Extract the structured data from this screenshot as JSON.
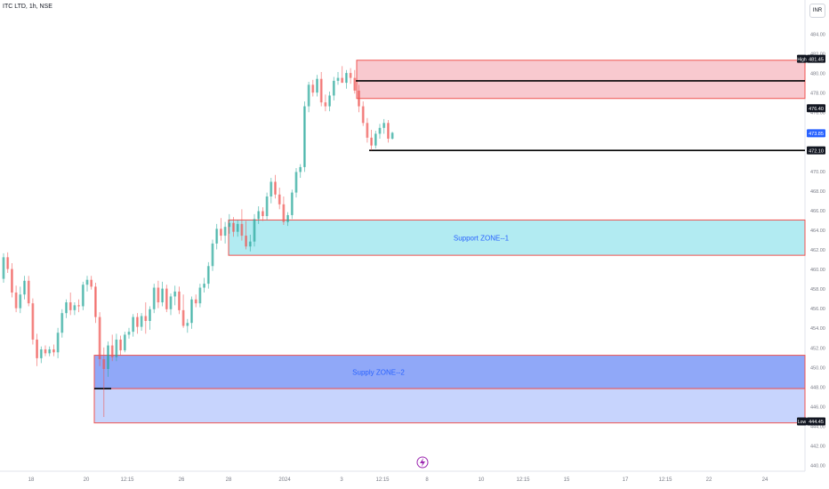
{
  "header": {
    "symbol": "ITC LTD, 1h, NSE",
    "currency": "INR"
  },
  "zones": [
    {
      "label": "Support  ZONE--1",
      "top_price": 465.0,
      "bottom_price": 461.4,
      "start_x": 257,
      "fill": "#b2ebf2",
      "border": "#ef5350",
      "text_color": "#2962ff"
    },
    {
      "label": "Supply  ZONE--2",
      "top_price": 451.2,
      "bottom_price": 447.8,
      "start_x": 106,
      "fill": "#90a8f8",
      "border": "#ef5350",
      "text_color": "#2962ff"
    },
    {
      "label": "",
      "top_price": 447.8,
      "bottom_price": 444.3,
      "start_x": 106,
      "fill": "#c7d4fd",
      "border": "#ef5350",
      "text_color": "#2962ff"
    },
    {
      "label": "",
      "top_price": 481.3,
      "bottom_price": 477.4,
      "start_x": 401,
      "fill": "#f8c9cf",
      "border": "#ef5350",
      "text_color": "#2962ff"
    }
  ],
  "lines": [
    {
      "price": 479.2,
      "start_x": 400
    },
    {
      "price": 472.1,
      "start_x": 415
    },
    {
      "price": 447.8,
      "start_x": 106,
      "end_x": 125
    }
  ],
  "chart_data": {
    "type": "candlestick",
    "symbol": "ITC LTD",
    "interval": "1h",
    "exchange": "NSE",
    "currency": "INR",
    "ylim": [
      440,
      486
    ],
    "y_ticks": [
      "440.00",
      "442.00",
      "444.00",
      "446.00",
      "448.00",
      "450.00",
      "452.00",
      "454.00",
      "456.00",
      "458.00",
      "460.00",
      "462.00",
      "464.00",
      "466.00",
      "468.00",
      "470.00",
      "472.00",
      "474.00",
      "476.00",
      "478.00",
      "480.00",
      "482.00",
      "484.00"
    ],
    "x_ticks": [
      "18",
      "20",
      "12:15",
      "26",
      "28",
      "2024",
      "3",
      "12:15",
      "8",
      "10",
      "12:15",
      "15",
      "17",
      "12:15",
      "22",
      "24"
    ],
    "price_labels": [
      {
        "text": "481.45",
        "price": 481.45,
        "tag": "High",
        "bg": "#131722"
      },
      {
        "text": "476.40",
        "price": 476.4,
        "tag": "",
        "bg": "#131722"
      },
      {
        "text": "473.85",
        "price": 473.85,
        "tag": "",
        "bg": "#2962ff"
      },
      {
        "text": "472.10",
        "price": 472.1,
        "tag": "",
        "bg": "#131722"
      },
      {
        "text": "444.45",
        "price": 444.45,
        "tag": "Low",
        "bg": "#131722"
      }
    ],
    "candles": [
      [
        459.0,
        461.6,
        458.6,
        461.2
      ],
      [
        461.2,
        461.7,
        459.6,
        460.0
      ],
      [
        460.0,
        460.6,
        457.1,
        457.6
      ],
      [
        457.6,
        458.3,
        455.6,
        456.0
      ],
      [
        456.0,
        458.2,
        455.5,
        457.4
      ],
      [
        457.4,
        459.3,
        456.9,
        458.8
      ],
      [
        458.8,
        459.3,
        456.2,
        456.5
      ],
      [
        456.5,
        457.0,
        452.3,
        452.8
      ],
      [
        452.8,
        453.4,
        450.1,
        450.9
      ],
      [
        450.9,
        452.1,
        450.4,
        451.8
      ],
      [
        451.8,
        452.2,
        451.1,
        451.4
      ],
      [
        451.4,
        452.1,
        451.1,
        451.8
      ],
      [
        451.8,
        452.3,
        451.1,
        451.5
      ],
      [
        451.5,
        454.0,
        450.9,
        453.5
      ],
      [
        453.5,
        455.9,
        453.0,
        455.5
      ],
      [
        455.5,
        456.9,
        455.0,
        456.6
      ],
      [
        456.6,
        457.6,
        455.3,
        455.8
      ],
      [
        455.8,
        456.6,
        455.3,
        456.3
      ],
      [
        456.3,
        456.9,
        455.6,
        456.2
      ],
      [
        456.2,
        458.7,
        455.8,
        458.4
      ],
      [
        458.4,
        459.3,
        457.7,
        458.9
      ],
      [
        458.9,
        459.3,
        457.9,
        458.2
      ],
      [
        458.2,
        458.6,
        454.5,
        455.1
      ],
      [
        455.1,
        455.6,
        450.1,
        450.8
      ],
      [
        450.8,
        452.0,
        444.9,
        449.8
      ],
      [
        449.8,
        452.6,
        449.0,
        452.2
      ],
      [
        452.2,
        453.3,
        450.6,
        451.0
      ],
      [
        451.0,
        453.4,
        450.6,
        452.8
      ],
      [
        452.8,
        453.2,
        451.2,
        451.7
      ],
      [
        451.7,
        453.6,
        451.5,
        453.3
      ],
      [
        453.3,
        454.0,
        452.9,
        453.6
      ],
      [
        453.6,
        455.4,
        453.1,
        455.1
      ],
      [
        455.1,
        455.5,
        453.4,
        454.1
      ],
      [
        454.1,
        455.5,
        453.7,
        455.2
      ],
      [
        455.2,
        456.6,
        453.4,
        454.7
      ],
      [
        454.7,
        456.2,
        453.8,
        455.9
      ],
      [
        455.9,
        458.5,
        455.5,
        458.1
      ],
      [
        458.1,
        458.8,
        456.0,
        456.6
      ],
      [
        456.6,
        458.7,
        456.2,
        458.0
      ],
      [
        458.0,
        458.4,
        455.6,
        455.9
      ],
      [
        455.9,
        457.5,
        455.3,
        457.2
      ],
      [
        457.2,
        458.3,
        456.3,
        457.7
      ],
      [
        457.7,
        458.2,
        455.4,
        455.8
      ],
      [
        455.8,
        457.4,
        454.0,
        454.2
      ],
      [
        454.2,
        454.9,
        453.5,
        454.5
      ],
      [
        454.5,
        457.2,
        453.9,
        456.9
      ],
      [
        456.9,
        457.4,
        456.1,
        456.5
      ],
      [
        456.5,
        458.5,
        456.1,
        458.1
      ],
      [
        458.1,
        459.1,
        457.6,
        458.5
      ],
      [
        458.5,
        460.7,
        458.0,
        460.3
      ],
      [
        460.3,
        463.0,
        459.8,
        462.6
      ],
      [
        462.6,
        464.6,
        462.0,
        464.1
      ],
      [
        464.1,
        465.2,
        462.9,
        463.4
      ],
      [
        463.4,
        464.8,
        462.6,
        464.3
      ],
      [
        464.3,
        465.6,
        463.6,
        464.7
      ],
      [
        464.7,
        465.3,
        463.3,
        463.8
      ],
      [
        463.8,
        465.0,
        463.3,
        464.6
      ],
      [
        464.6,
        466.1,
        462.9,
        463.4
      ],
      [
        463.4,
        464.9,
        462.0,
        462.3
      ],
      [
        462.3,
        463.5,
        461.8,
        462.8
      ],
      [
        462.8,
        465.6,
        462.3,
        465.1
      ],
      [
        465.1,
        466.4,
        464.6,
        465.9
      ],
      [
        465.9,
        466.3,
        464.9,
        465.4
      ],
      [
        465.4,
        467.8,
        465.0,
        467.4
      ],
      [
        467.4,
        469.3,
        466.7,
        468.9
      ],
      [
        468.9,
        469.6,
        467.2,
        467.6
      ],
      [
        467.6,
        468.3,
        466.1,
        466.6
      ],
      [
        466.6,
        467.4,
        464.5,
        464.8
      ],
      [
        464.8,
        465.8,
        464.4,
        465.5
      ],
      [
        465.5,
        468.1,
        465.1,
        467.8
      ],
      [
        467.8,
        470.3,
        467.3,
        469.9
      ],
      [
        469.9,
        470.7,
        469.3,
        470.4
      ],
      [
        470.4,
        477.1,
        469.9,
        476.6
      ],
      [
        476.6,
        479.1,
        476.0,
        478.8
      ],
      [
        478.8,
        479.3,
        477.6,
        478.0
      ],
      [
        478.0,
        479.8,
        477.6,
        479.4
      ],
      [
        479.4,
        480.1,
        476.6,
        477.0
      ],
      [
        477.0,
        477.8,
        476.1,
        476.6
      ],
      [
        476.6,
        478.1,
        476.1,
        477.7
      ],
      [
        477.7,
        479.6,
        477.2,
        479.2
      ],
      [
        479.2,
        480.1,
        478.8,
        479.5
      ],
      [
        479.5,
        480.7,
        479.0,
        479.0
      ],
      [
        479.0,
        480.3,
        478.4,
        480.0
      ],
      [
        480.0,
        480.5,
        478.9,
        479.5
      ],
      [
        479.5,
        480.3,
        477.9,
        478.2
      ],
      [
        478.2,
        478.8,
        476.0,
        476.6
      ],
      [
        476.6,
        477.1,
        474.6,
        474.9
      ],
      [
        474.9,
        475.4,
        472.9,
        473.4
      ],
      [
        473.4,
        474.2,
        472.1,
        472.6
      ],
      [
        472.6,
        474.1,
        472.3,
        473.8
      ],
      [
        473.8,
        474.8,
        473.3,
        474.4
      ],
      [
        474.4,
        475.3,
        473.8,
        474.9
      ],
      [
        474.9,
        475.2,
        472.9,
        473.3
      ],
      [
        473.3,
        474.0,
        473.2,
        473.9
      ]
    ]
  }
}
